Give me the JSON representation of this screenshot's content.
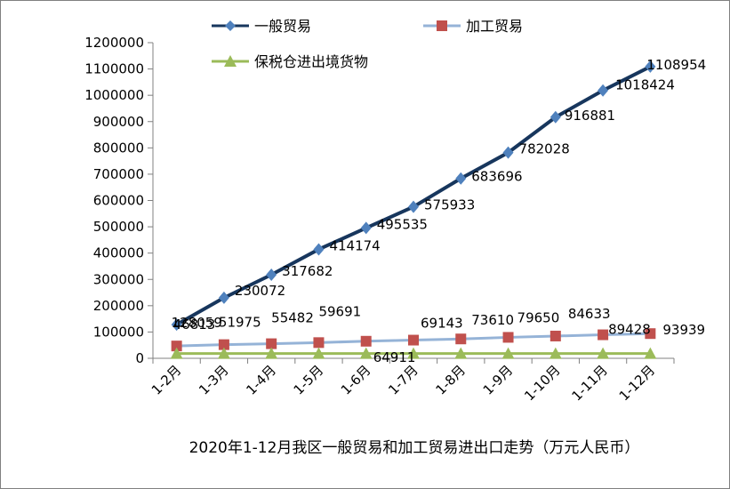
{
  "chart_data": {
    "type": "line",
    "title": "2020年1-12月我区一般贸易和加工贸易进出口走势（万元人民币）",
    "categories": [
      "1-2月",
      "1-3月",
      "1-4月",
      "1-5月",
      "1-6月",
      "1-7月",
      "1-8月",
      "1-9月",
      "1-10月",
      "1-11月",
      "1-12月"
    ],
    "ylim": [
      0,
      1200000
    ],
    "yticks": [
      "0",
      "100000",
      "200000",
      "300000",
      "400000",
      "500000",
      "600000",
      "700000",
      "800000",
      "900000",
      "1000000",
      "1100000",
      "1200000"
    ],
    "legend_position": "top",
    "grid": false,
    "series": [
      {
        "name": "一般贸易",
        "color": "#17365d",
        "marker": "diamond",
        "marker_color": "#4f81bd",
        "values": [
          128059,
          230072,
          317682,
          414174,
          495535,
          575933,
          683696,
          782028,
          916881,
          1018424,
          1108954
        ],
        "labels": [
          "128059",
          "230072",
          "317682",
          "414174",
          "495535",
          "575933",
          "683696",
          "782028",
          "916881",
          "1018424",
          "1108954"
        ]
      },
      {
        "name": "加工贸易",
        "color": "#95b3d7",
        "marker": "square",
        "marker_color": "#c0504d",
        "values": [
          46813,
          51975,
          55482,
          59691,
          64911,
          69143,
          73610,
          79650,
          84633,
          89428,
          93939
        ],
        "labels": [
          "46813",
          "51975",
          "55482",
          "59691",
          "64911",
          "69143",
          "73610",
          "79650",
          "84633",
          "89428",
          "93939"
        ]
      },
      {
        "name": "保税仓进出境货物",
        "color": "#9bbb59",
        "marker": "triangle",
        "marker_color": "#9bbb59",
        "values": [
          18000,
          18000,
          18000,
          18000,
          18000,
          18000,
          18000,
          18000,
          18000,
          18000,
          18000
        ]
      }
    ]
  }
}
